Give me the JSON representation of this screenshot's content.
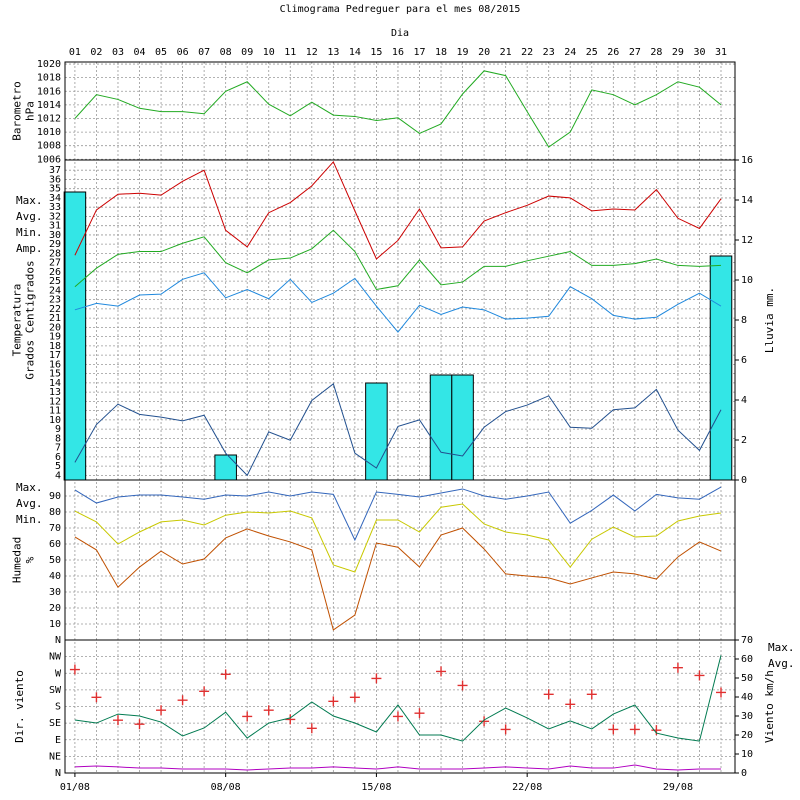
{
  "chart_data": {
    "title": "Climograma Pedreguer para el mes 08/2015",
    "xlabel": "Dia",
    "x": [
      1,
      2,
      3,
      4,
      5,
      6,
      7,
      8,
      9,
      10,
      11,
      12,
      13,
      14,
      15,
      16,
      17,
      18,
      19,
      20,
      21,
      22,
      23,
      24,
      25,
      26,
      27,
      28,
      29,
      30,
      31
    ],
    "xlim": [
      0.54,
      31.65
    ],
    "top_xticks": [
      {
        "value": 1,
        "label": "01"
      },
      {
        "value": 2,
        "label": "02"
      },
      {
        "value": 3,
        "label": "03"
      },
      {
        "value": 4,
        "label": "04"
      },
      {
        "value": 5,
        "label": "05"
      },
      {
        "value": 6,
        "label": "06"
      },
      {
        "value": 7,
        "label": "07"
      },
      {
        "value": 8,
        "label": "08"
      },
      {
        "value": 9,
        "label": "09"
      },
      10,
      11,
      12,
      13,
      14,
      15,
      16,
      17,
      18,
      19,
      20,
      21,
      22,
      23,
      24,
      25,
      26,
      27,
      28,
      29,
      30,
      31
    ],
    "bottom_xticks": [
      {
        "value": 1,
        "label": "01/08"
      },
      {
        "value": 8,
        "label": "08/08"
      },
      {
        "value": 15,
        "label": "15/08"
      },
      {
        "value": 22,
        "label": "22/08"
      },
      {
        "value": 29,
        "label": "29/08"
      }
    ],
    "grid": true,
    "panels": [
      {
        "type": "line",
        "ylabel": [
          "Barometro",
          "hPa"
        ],
        "ylabel_color": "#22aa22",
        "ylim": [
          1005.9,
          1020.3
        ],
        "yticks": [
          1006,
          1008,
          1010,
          1012,
          1014,
          1016,
          1018,
          1020
        ],
        "series": [
          {
            "color": "#22aa22",
            "values": [
              1012,
              1015.5,
              1014.8,
              1013.5,
              1013,
              1013,
              1012.7,
              1016,
              1017.4,
              1014.1,
              1012.4,
              1014.4,
              1012.5,
              1012.3,
              1011.7,
              1012.1,
              1009.8,
              1011.2,
              1015.6,
              1019,
              1018.3,
              1013,
              1007.8,
              1010,
              1016.2,
              1015.5,
              1014,
              1015.5,
              1017.4,
              1016.6,
              1014
            ]
          }
        ]
      },
      {
        "type": "line",
        "ylabel": [
          "Temperatura",
          "Grados Centigrados"
        ],
        "ylabel_color": "#cc0000",
        "y2label": "Lluvia mm.",
        "y2label_color": "#22cccc",
        "ylim": [
          3.5,
          38.1
        ],
        "yticks": [
          4,
          5,
          6,
          7,
          8,
          9,
          10,
          11,
          12,
          13,
          14,
          15,
          16,
          17,
          18,
          19,
          20,
          21,
          22,
          23,
          24,
          25,
          26,
          27,
          28,
          29,
          30,
          31,
          32,
          33,
          34,
          35,
          36,
          37
        ],
        "y2lim": [
          0,
          16
        ],
        "y2ticks": [
          0,
          2,
          4,
          6,
          8,
          10,
          12,
          14,
          16
        ],
        "series": [
          {
            "kind": "bar",
            "axis": "y2",
            "color": "#33e6e6",
            "values": [
              14.4,
              0,
              0,
              0,
              0,
              0,
              0,
              1.25,
              0,
              0,
              0,
              0,
              0,
              0,
              4.85,
              0,
              0,
              5.25,
              5.25,
              0,
              0,
              0,
              0,
              0,
              0,
              0,
              0,
              0,
              0,
              0,
              11.2
            ]
          },
          {
            "name": "Max.",
            "color": "#cc0000",
            "values": [
              27.8,
              32.7,
              34.4,
              34.5,
              34.3,
              35.8,
              37,
              30.5,
              28.7,
              32.4,
              33.5,
              35.3,
              37.9,
              32.6,
              27.4,
              29.4,
              32.8,
              28.6,
              28.7,
              31.5,
              32.4,
              33.2,
              34.2,
              34,
              32.6,
              32.8,
              32.7,
              34.9,
              31.8,
              30.7,
              33.9
            ]
          },
          {
            "name": "Avg.",
            "color": "#22aa22",
            "values": [
              24.4,
              26.4,
              27.9,
              28.2,
              28.2,
              29.1,
              29.8,
              27,
              25.9,
              27.3,
              27.5,
              28.5,
              30.5,
              28.2,
              24.1,
              24.5,
              27.3,
              24.6,
              24.9,
              26.6,
              26.6,
              27.2,
              27.7,
              28.2,
              26.7,
              26.7,
              26.9,
              27.4,
              26.7,
              26.6,
              26.7
            ]
          },
          {
            "name": "Min.",
            "color": "#1f88dd",
            "values": [
              21.9,
              22.6,
              22.3,
              23.5,
              23.6,
              25.2,
              25.9,
              23.2,
              24.1,
              23.1,
              25.2,
              22.7,
              23.7,
              25.3,
              22.3,
              19.5,
              22.4,
              21.4,
              22.2,
              21.9,
              20.9,
              21,
              21.2,
              24.4,
              23.1,
              21.3,
              20.9,
              21.1,
              22.5,
              23.7,
              22.3
            ]
          },
          {
            "name": "Amp.",
            "color": "#22508f",
            "values": [
              5.4,
              9.5,
              11.7,
              10.6,
              10.3,
              9.9,
              10.5,
              6.4,
              4,
              8.7,
              7.8,
              12.1,
              13.9,
              6.4,
              4.8,
              9.3,
              10,
              6.5,
              6.1,
              9.2,
              10.9,
              11.6,
              12.6,
              9.2,
              9.1,
              11.1,
              11.3,
              13.3,
              8.9,
              6.7,
              11.1
            ]
          }
        ]
      },
      {
        "type": "line",
        "ylabel": [
          "Humedad",
          "%"
        ],
        "ylabel_color": "#c05000",
        "ylim": [
          0,
          100
        ],
        "yticks": [
          10,
          20,
          30,
          40,
          50,
          60,
          70,
          80,
          90
        ],
        "series": [
          {
            "name": "Max.",
            "color": "#3366bb",
            "values": [
              93.8,
              85.6,
              89.4,
              90.6,
              90.6,
              89.4,
              88,
              90.6,
              90,
              92.5,
              90,
              92.5,
              91,
              62.5,
              92.5,
              91,
              89.4,
              91.9,
              94.4,
              90,
              88,
              90,
              92.5,
              73,
              81,
              90.6,
              80.6,
              91,
              88.8,
              88,
              95.6
            ]
          },
          {
            "name": "Avg.",
            "color": "#c8c800",
            "values": [
              80.6,
              73.8,
              60,
              67.5,
              73.8,
              75,
              71.9,
              78,
              80,
              79.4,
              80.6,
              76.3,
              46.9,
              42.5,
              75,
              75,
              67.5,
              83,
              85,
              72.5,
              67.5,
              65.6,
              62.5,
              45.6,
              63,
              70.6,
              64.4,
              65,
              74.4,
              77.5,
              79.4
            ]
          },
          {
            "name": "Min.",
            "color": "#c05000",
            "values": [
              64.4,
              56.3,
              33,
              45.6,
              55.6,
              47.5,
              50.6,
              63.8,
              69.4,
              65,
              61.3,
              56.3,
              6.3,
              15.6,
              60.6,
              58,
              45.6,
              65.6,
              70,
              56.9,
              41.3,
              40,
              38.8,
              35,
              38.8,
              42.5,
              41.3,
              38.1,
              51.9,
              61.3,
              55.6
            ]
          }
        ]
      },
      {
        "type": "line",
        "ylabel": [
          "Dir. viento"
        ],
        "ylabel_color": "#cc0000",
        "y2label": "Viento km/h",
        "y2label_color": "#b000c0",
        "ylim": [
          0,
          360
        ],
        "yticks": [
          {
            "value": 0,
            "label": "N"
          },
          {
            "value": 45,
            "label": "NE"
          },
          {
            "value": 90,
            "label": "E"
          },
          {
            "value": 135,
            "label": "SE"
          },
          {
            "value": 180,
            "label": "S"
          },
          {
            "value": 225,
            "label": "SW"
          },
          {
            "value": 270,
            "label": "W"
          },
          {
            "value": 315,
            "label": "NW"
          },
          {
            "value": 360,
            "label": "N"
          }
        ],
        "y2lim": [
          0,
          70
        ],
        "y2ticks": [
          0,
          10,
          20,
          30,
          40,
          50,
          60,
          70
        ],
        "legend": "right",
        "series": [
          {
            "kind": "scatter",
            "color": "#e03030",
            "values": [
              280,
              205,
              143,
              132,
              170,
              197,
              221,
              267,
              153,
              170,
              145,
              121,
              194,
              205,
              256,
              153,
              162,
              275,
              237,
              140,
              118,
              null,
              213,
              186,
              213,
              118,
              118,
              116,
              285,
              264,
              218
            ]
          },
          {
            "name": "Max.",
            "axis": "y2",
            "color": "#007a50",
            "values": [
              27.9,
              26.3,
              31,
              30,
              26.8,
              19.5,
              23.7,
              32,
              18.4,
              26.3,
              29,
              37.4,
              30,
              26.3,
              21.6,
              35.8,
              20,
              20,
              16.8,
              27.9,
              34.2,
              29,
              23.2,
              27.4,
              23.2,
              31,
              35.8,
              21,
              18.4,
              16.8,
              62
            ]
          },
          {
            "name": "Avg.",
            "axis": "y2",
            "color": "#b000c0",
            "values": [
              3.2,
              3.7,
              3.2,
              2.6,
              2.6,
              2.1,
              2.1,
              2.1,
              1.6,
              2.1,
              2.6,
              2.6,
              3.2,
              2.6,
              2.1,
              3.2,
              2.1,
              2.1,
              2.1,
              2.6,
              3.2,
              2.6,
              2.1,
              3.7,
              2.6,
              2.6,
              4.2,
              2.1,
              1.6,
              2.1,
              2.1
            ]
          }
        ]
      }
    ]
  }
}
